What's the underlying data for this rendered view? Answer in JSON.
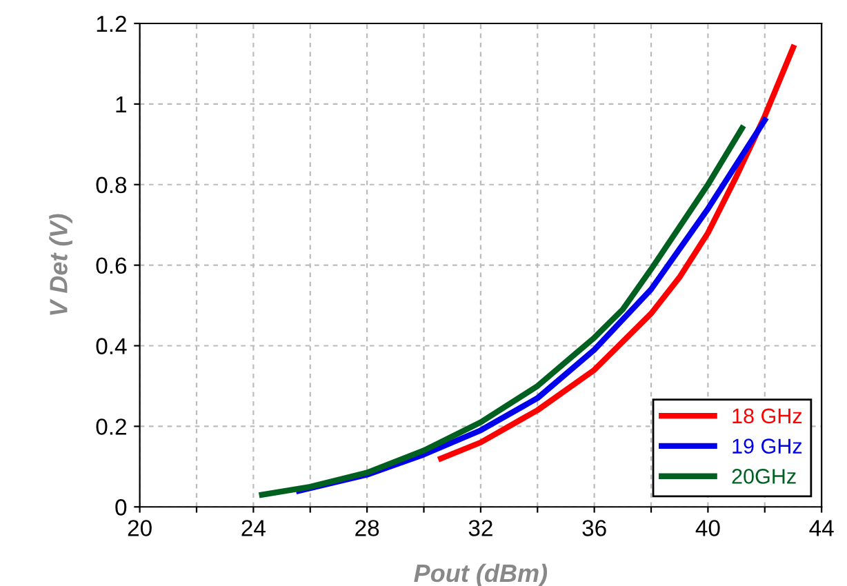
{
  "chart_data": {
    "type": "line",
    "xlabel": "Pout (dBm)",
    "ylabel": "V Det (V)",
    "xlim": [
      20,
      44
    ],
    "ylim": [
      0,
      1.2
    ],
    "xticks": [
      20,
      {
        "value": 22,
        "label": null
      },
      24,
      {
        "value": 26,
        "label": null
      },
      28,
      {
        "value": 30,
        "label": null
      },
      32,
      {
        "value": 34,
        "label": null
      },
      36,
      {
        "value": 38,
        "label": null
      },
      40,
      {
        "value": 42,
        "label": null
      },
      44
    ],
    "yticks": [
      0,
      0.2,
      0.4,
      0.6,
      0.8,
      1,
      1.2
    ],
    "grid": true,
    "legend": "bottom right",
    "marker": "none",
    "line_style": "solid",
    "series": [
      {
        "name": "18 GHz",
        "color": "#ff0000",
        "x": [
          30.6,
          32,
          34,
          36,
          38,
          39,
          40,
          41,
          42,
          43
        ],
        "values": [
          0.12,
          0.16,
          0.24,
          0.34,
          0.48,
          0.57,
          0.68,
          0.82,
          0.97,
          1.14
        ]
      },
      {
        "name": "19 GHz",
        "color": "#0000ee",
        "x": [
          25.6,
          28,
          30,
          32,
          34,
          36,
          38,
          40,
          41,
          42
        ],
        "values": [
          0.04,
          0.08,
          0.13,
          0.19,
          0.27,
          0.39,
          0.54,
          0.74,
          0.85,
          0.96
        ]
      },
      {
        "name": "20GHz",
        "color": "#006020",
        "x": [
          24.3,
          26,
          28,
          30,
          32,
          34,
          36,
          37,
          38,
          40,
          41.2
        ],
        "values": [
          0.03,
          0.05,
          0.085,
          0.14,
          0.21,
          0.3,
          0.42,
          0.49,
          0.59,
          0.8,
          0.94
        ]
      }
    ]
  }
}
